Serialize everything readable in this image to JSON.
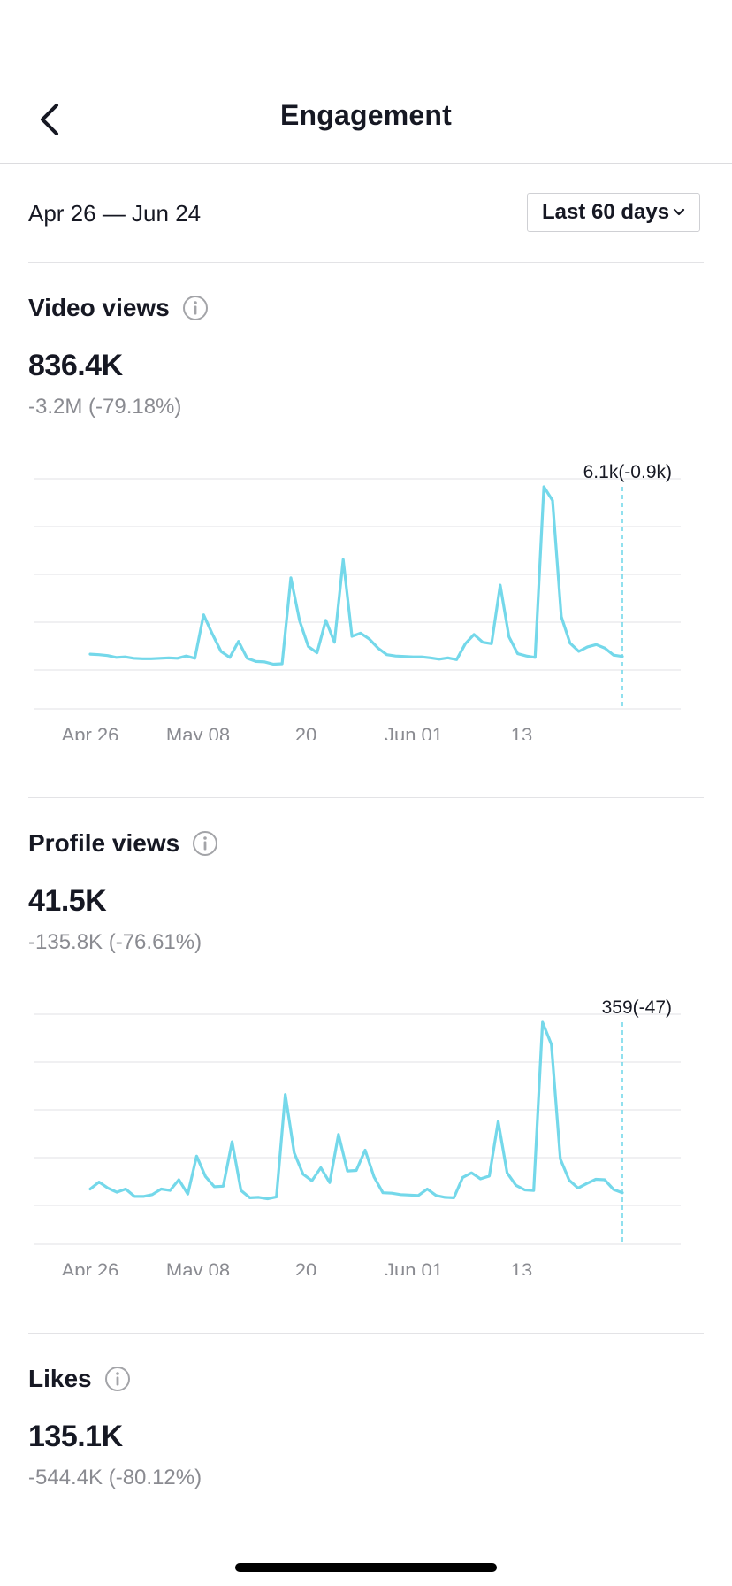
{
  "header": {
    "title": "Engagement",
    "back_icon": "chevron-left-icon"
  },
  "range": {
    "date_range": "Apr 26 — Jun 24",
    "period_label": "Last 60 days",
    "period_icon": "chevron-down-icon"
  },
  "colors": {
    "line": "#74d8ea",
    "grid": "#e6e6e9",
    "text": "#161823",
    "muted": "#8a8b91"
  },
  "sections": [
    {
      "title": "Video views",
      "value": "836.4K",
      "change": "-3.2M (-79.18%)",
      "chart_data": {
        "type": "line",
        "x_tick_labels": [
          "Apr 26",
          "May 08",
          "20",
          "Jun 01",
          "13"
        ],
        "callout": "6.1k(-0.9k)",
        "series": [
          {
            "values": [
              21,
              20,
              18,
              14,
              15,
              12,
              11,
              11,
              12,
              13,
              12,
              17,
              12,
              107,
              65,
              27,
              14,
              49,
              12,
              5,
              4,
              -1,
              0,
              188,
              94,
              38,
              24,
              95,
              47,
              228,
              60,
              67,
              54,
              34,
              20,
              17,
              16,
              15,
              15,
              13,
              10,
              13,
              9,
              44,
              64,
              47,
              44,
              172,
              59,
              22,
              17,
              14,
              387,
              357,
              103,
              45,
              27,
              37,
              42,
              34,
              19,
              16
            ]
          }
        ],
        "grid": true,
        "vertical_marker": "last point"
      }
    },
    {
      "title": "Profile views",
      "value": "41.5K",
      "change": "-135.8K (-76.61%)",
      "chart_data": {
        "type": "line",
        "x_tick_labels": [
          "Apr 26",
          "May 08",
          "20",
          "Jun 01",
          "13"
        ],
        "callout": "359(-47)",
        "series": [
          {
            "values": [
              22,
              37,
              24,
              15,
              22,
              6,
              6,
              10,
              22,
              19,
              42,
              11,
              93,
              49,
              27,
              28,
              124,
              19,
              3,
              4,
              1,
              5,
              226,
              100,
              54,
              40,
              68,
              36,
              140,
              61,
              62,
              106,
              48,
              14,
              13,
              10,
              9,
              8,
              22,
              8,
              4,
              3,
              47,
              57,
              44,
              50,
              168,
              57,
              30,
              20,
              19,
              382,
              334,
              87,
              41,
              24,
              34,
              43,
              42,
              21,
              14
            ]
          }
        ],
        "grid": true,
        "vertical_marker": "last point"
      }
    },
    {
      "title": "Likes",
      "value": "135.1K",
      "change": "-544.4K (-80.12%)"
    }
  ],
  "info_icon": "info-circle-icon"
}
